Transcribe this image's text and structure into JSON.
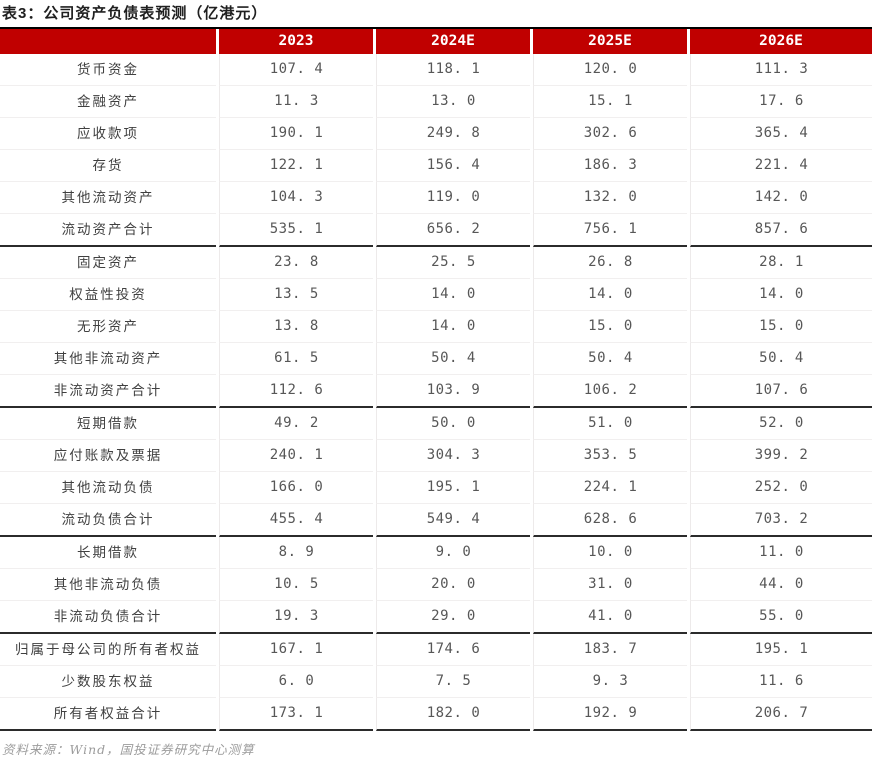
{
  "title": "表3：公司资产负债表预测（亿港元）",
  "source": "资料来源：Wind，国投证券研究中心测算",
  "colors": {
    "header_bg": "#C00000",
    "header_text": "#FFFFFF",
    "top_rule": "#000000",
    "section_rule": "#2B2B2B",
    "faint_rule": "#F1EFEF",
    "label_text": "#404040",
    "value_text": "#575757",
    "source_text": "#9C9C9C"
  },
  "table": {
    "columns": [
      "",
      "2023",
      "2024E",
      "2025E",
      "2026E"
    ],
    "sections": [
      {
        "rows": [
          {
            "label": "货币资金",
            "values": [
              "107. 4",
              "118. 1",
              "120. 0",
              "111. 3"
            ]
          },
          {
            "label": "金融资产",
            "values": [
              "11. 3",
              "13. 0",
              "15. 1",
              "17. 6"
            ]
          },
          {
            "label": "应收款项",
            "values": [
              "190. 1",
              "249. 8",
              "302. 6",
              "365. 4"
            ]
          },
          {
            "label": "存货",
            "values": [
              "122. 1",
              "156. 4",
              "186. 3",
              "221. 4"
            ]
          },
          {
            "label": "其他流动资产",
            "values": [
              "104. 3",
              "119. 0",
              "132. 0",
              "142. 0"
            ]
          },
          {
            "label": "流动资产合计",
            "values": [
              "535. 1",
              "656. 2",
              "756. 1",
              "857. 6"
            ]
          }
        ]
      },
      {
        "rows": [
          {
            "label": "固定资产",
            "values": [
              "23. 8",
              "25. 5",
              "26. 8",
              "28. 1"
            ]
          },
          {
            "label": "权益性投资",
            "values": [
              "13. 5",
              "14. 0",
              "14. 0",
              "14. 0"
            ]
          },
          {
            "label": "无形资产",
            "values": [
              "13. 8",
              "14. 0",
              "15. 0",
              "15. 0"
            ]
          },
          {
            "label": "其他非流动资产",
            "values": [
              "61. 5",
              "50. 4",
              "50. 4",
              "50. 4"
            ]
          },
          {
            "label": "非流动资产合计",
            "values": [
              "112. 6",
              "103. 9",
              "106. 2",
              "107. 6"
            ]
          }
        ]
      },
      {
        "rows": [
          {
            "label": "短期借款",
            "values": [
              "49. 2",
              "50. 0",
              "51. 0",
              "52. 0"
            ]
          },
          {
            "label": "应付账款及票据",
            "values": [
              "240. 1",
              "304. 3",
              "353. 5",
              "399. 2"
            ]
          },
          {
            "label": "其他流动负债",
            "values": [
              "166. 0",
              "195. 1",
              "224. 1",
              "252. 0"
            ]
          },
          {
            "label": "流动负债合计",
            "values": [
              "455. 4",
              "549. 4",
              "628. 6",
              "703. 2"
            ]
          }
        ]
      },
      {
        "rows": [
          {
            "label": "长期借款",
            "values": [
              "8. 9",
              "9. 0",
              "10. 0",
              "11. 0"
            ]
          },
          {
            "label": "其他非流动负债",
            "values": [
              "10. 5",
              "20. 0",
              "31. 0",
              "44. 0"
            ]
          },
          {
            "label": "非流动负债合计",
            "values": [
              "19. 3",
              "29. 0",
              "41. 0",
              "55. 0"
            ]
          }
        ]
      },
      {
        "rows": [
          {
            "label": "归属于母公司的所有者权益",
            "values": [
              "167. 1",
              "174. 6",
              "183. 7",
              "195. 1"
            ]
          },
          {
            "label": "少数股东权益",
            "values": [
              "6. 0",
              "7. 5",
              "9. 3",
              "11. 6"
            ]
          },
          {
            "label": "所有者权益合计",
            "values": [
              "173. 1",
              "182. 0",
              "192. 9",
              "206. 7"
            ]
          }
        ]
      }
    ]
  }
}
